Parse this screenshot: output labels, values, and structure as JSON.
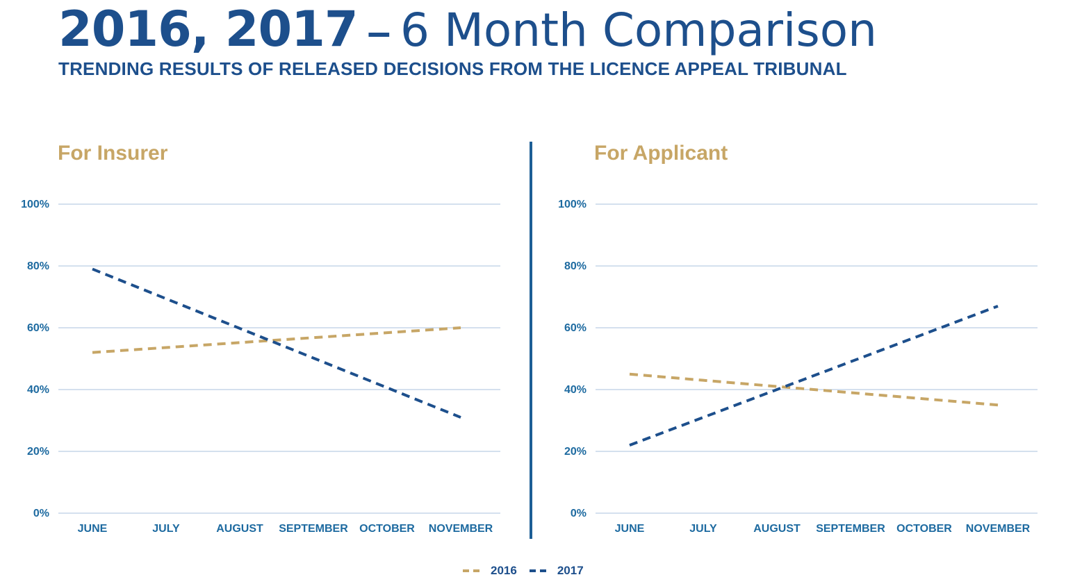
{
  "header": {
    "title_years": "2016, 2017",
    "title_separator": "–",
    "title_rest": "6 Month Comparison",
    "subtitle": "TRENDING RESULTS OF RELEASED DECISIONS FROM THE LICENCE APPEAL TRIBUNAL"
  },
  "colors": {
    "title": "#1d4f8c",
    "series_2016": "#c7a666",
    "series_2017": "#1d4f8c",
    "axis_text": "#1d6aa0",
    "gridline": "#a9c1dc",
    "divider": "#1d5e96"
  },
  "legend": [
    {
      "label": "2016",
      "color": "#c7a666"
    },
    {
      "label": "2017",
      "color": "#1d4f8c"
    }
  ],
  "chart_data": [
    {
      "type": "line",
      "title": "For Insurer",
      "categories": [
        "JUNE",
        "JULY",
        "AUGUST",
        "SEPTEMBER",
        "OCTOBER",
        "NOVEMBER"
      ],
      "y_ticks": [
        "0%",
        "20%",
        "40%",
        "60%",
        "80%",
        "100%"
      ],
      "ylim": [
        0,
        100
      ],
      "grid": true,
      "series": [
        {
          "name": "2016",
          "values": [
            52,
            53.6,
            55.2,
            56.8,
            58.4,
            60
          ],
          "style": "dashed"
        },
        {
          "name": "2017",
          "values": [
            79,
            69.4,
            59.8,
            50.2,
            40.6,
            31
          ],
          "style": "dashed"
        }
      ]
    },
    {
      "type": "line",
      "title": "For Applicant",
      "categories": [
        "JUNE",
        "JULY",
        "AUGUST",
        "SEPTEMBER",
        "OCTOBER",
        "NOVEMBER"
      ],
      "y_ticks": [
        "0%",
        "20%",
        "40%",
        "60%",
        "80%",
        "100%"
      ],
      "ylim": [
        0,
        100
      ],
      "grid": true,
      "series": [
        {
          "name": "2016",
          "values": [
            45,
            43,
            41,
            39,
            37,
            35
          ],
          "style": "dashed"
        },
        {
          "name": "2017",
          "values": [
            22,
            31,
            40,
            49,
            58,
            67
          ],
          "style": "dashed"
        }
      ]
    }
  ]
}
